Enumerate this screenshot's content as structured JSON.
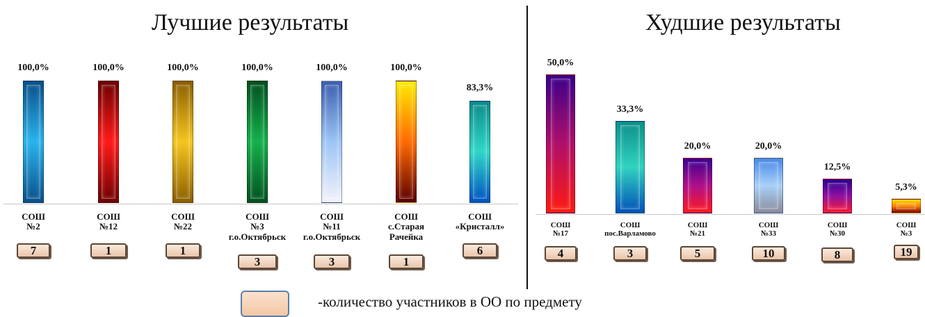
{
  "legend": {
    "text": "-количество участников в ОО по предмету",
    "swatch_color": "#f6d3b8"
  },
  "chart_data": [
    {
      "type": "bar",
      "title": "Лучшие результаты",
      "categories": [
        "СОШ №2",
        "СОШ №12",
        "СОШ №22",
        "СОШ №3 г.о.Октябрьск",
        "СОШ №11 г.о.Октябрьск",
        "СОШ с.Старая Рачейка",
        "СОШ «Кристалл»"
      ],
      "category_lines": [
        [
          "СОШ",
          "№2"
        ],
        [
          "СОШ",
          "№12"
        ],
        [
          "СОШ",
          "№22"
        ],
        [
          "СОШ",
          "№3",
          "г.о.Октябрьск"
        ],
        [
          "СОШ",
          "№11",
          "г.о.Октябрьск"
        ],
        [
          "СОШ",
          "с.Старая",
          "Рачейка"
        ],
        [
          "СОШ",
          "«Кристалл»"
        ]
      ],
      "values": [
        100.0,
        100.0,
        100.0,
        100.0,
        100.0,
        100.0,
        83.3
      ],
      "value_labels": [
        "100,0%",
        "100,0%",
        "100,0%",
        "100,0%",
        "100,0%",
        "100,0%",
        "83,3%"
      ],
      "participants": [
        "7",
        "1",
        "1",
        "3",
        "3",
        "1",
        "6"
      ],
      "colors": [
        [
          "#0a4f8a",
          "#29b3ec",
          "#0a4f8a"
        ],
        [
          "#6e0000",
          "#ff1a1a",
          "#6e0000"
        ],
        [
          "#8a5e00",
          "#f5c51d",
          "#8a5e00"
        ],
        [
          "#00501f",
          "#14b04a",
          "#00501f"
        ],
        [
          "#3a5fb0",
          "#9cc4f5",
          "#f2f2fa"
        ],
        [
          "#ffeb00",
          "#ff6a00",
          "#5a0000"
        ],
        [
          "#0b8a8a",
          "#2fd6c8",
          "#0050c0"
        ]
      ],
      "ylim": [
        0,
        100
      ],
      "xlabel": "",
      "ylabel": "",
      "grid": false,
      "legend": "none"
    },
    {
      "type": "bar",
      "title": "Худшие результаты",
      "categories": [
        "СОШ №17",
        "СОШ пос.Варламово",
        "СОШ №21",
        "СОШ №33",
        "СОШ №30",
        "СОШ №3"
      ],
      "category_lines": [
        [
          "СОШ",
          "№17"
        ],
        [
          "СОШ",
          "пос.Варламово"
        ],
        [
          "СОШ",
          "№21"
        ],
        [
          "СОШ",
          "№33"
        ],
        [
          "СОШ",
          "№30"
        ],
        [
          "СОШ",
          "№3"
        ]
      ],
      "values": [
        50.0,
        33.3,
        20.0,
        20.0,
        12.5,
        5.3
      ],
      "value_labels": [
        "50,0%",
        "33,3%",
        "20,0%",
        "20,0%",
        "12,5%",
        "5,3%"
      ],
      "participants": [
        "4",
        "3",
        "5",
        "10",
        "8",
        "19"
      ],
      "colors": [
        [
          "#3a008a",
          "#b0106a",
          "#ff1a10"
        ],
        [
          "#0a8f8a",
          "#30d2c0",
          "#0050b8"
        ],
        [
          "#3a0090",
          "#b0108a",
          "#ff1a20"
        ],
        [
          "#4a8ae8",
          "#a8d0f8",
          "#8a8a9a"
        ],
        [
          "#2a0090",
          "#9010a0",
          "#ff1a30"
        ],
        [
          "#ffe000",
          "#ff8000",
          "#7a0000"
        ]
      ],
      "ylim": [
        0,
        50
      ],
      "xlabel": "",
      "ylabel": "",
      "grid": false,
      "legend": "none"
    }
  ]
}
